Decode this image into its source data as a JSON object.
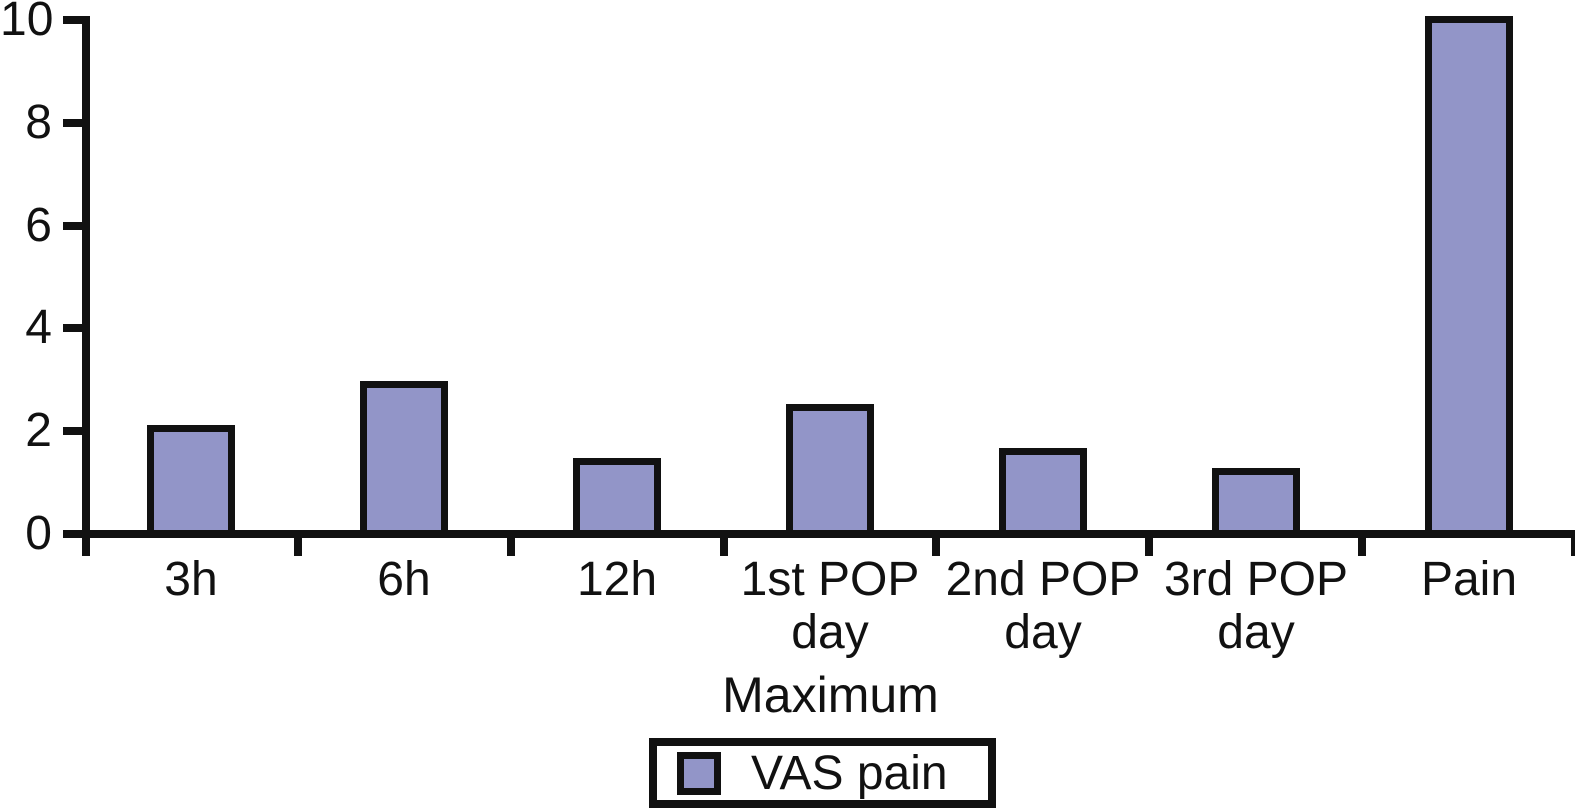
{
  "figure": {
    "background_color": "#ffffff",
    "axis_color": "#111111",
    "text_color": "#111111"
  },
  "chart_data": {
    "type": "bar",
    "title": "",
    "xlabel": "Maximum",
    "ylabel": "",
    "categories": [
      "3h",
      "6h",
      "12h",
      "1st POP day",
      "2nd POP day",
      "3rd POP day",
      "Pain"
    ],
    "categories_display": [
      [
        "3h"
      ],
      [
        "6h"
      ],
      [
        "12h"
      ],
      [
        "1st POP",
        "day"
      ],
      [
        "2nd POP",
        "day"
      ],
      [
        "3rd POP",
        "day"
      ],
      [
        "Pain"
      ]
    ],
    "values": [
      2.05,
      2.9,
      1.4,
      2.45,
      1.6,
      1.2,
      10
    ],
    "ylim": [
      0,
      10
    ],
    "yticks": [
      0,
      2,
      4,
      6,
      8,
      10
    ],
    "grid": false,
    "bar_color": "#9295C8",
    "bar_border_color": "#111111",
    "legend": {
      "position": "bottom",
      "entries": [
        {
          "label": "VAS pain",
          "swatch_color": "#9295C8"
        }
      ]
    }
  }
}
